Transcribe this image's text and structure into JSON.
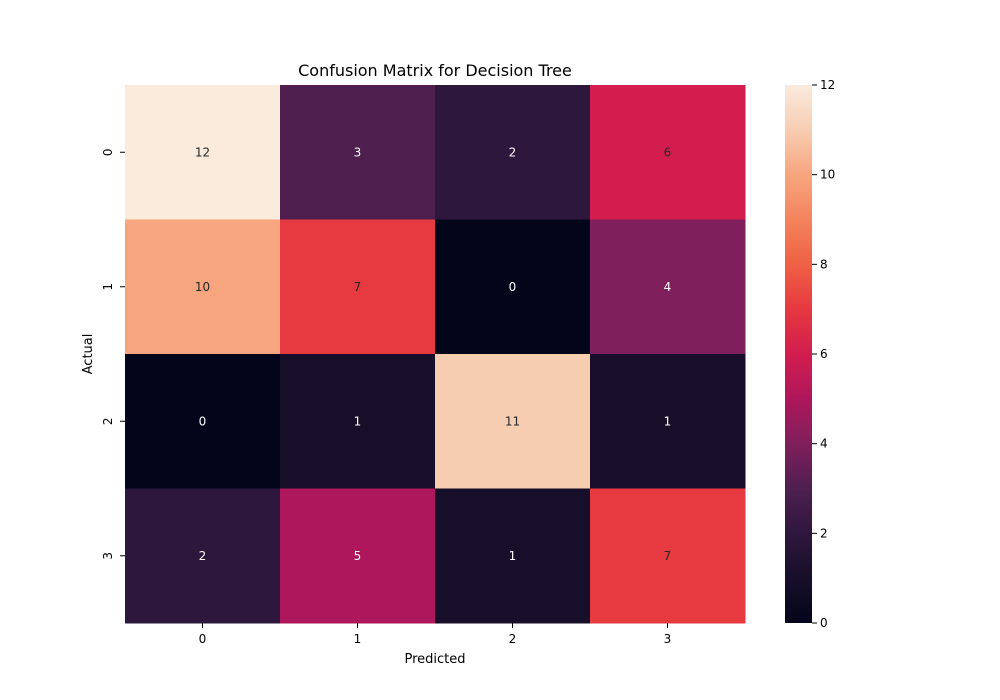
{
  "chart_data": {
    "type": "heatmap",
    "title": "Confusion Matrix for Decision Tree",
    "xlabel": "Predicted",
    "ylabel": "Actual",
    "x_categories": [
      "0",
      "1",
      "2",
      "3"
    ],
    "y_categories": [
      "0",
      "1",
      "2",
      "3"
    ],
    "values": [
      [
        12,
        3,
        2,
        6
      ],
      [
        10,
        7,
        0,
        4
      ],
      [
        0,
        1,
        11,
        1
      ],
      [
        2,
        5,
        1,
        7
      ]
    ],
    "colorbar": {
      "min": 0,
      "max": 12,
      "ticks": [
        "0",
        "2",
        "4",
        "6",
        "8",
        "10",
        "12"
      ]
    },
    "colormap": "rocket"
  }
}
